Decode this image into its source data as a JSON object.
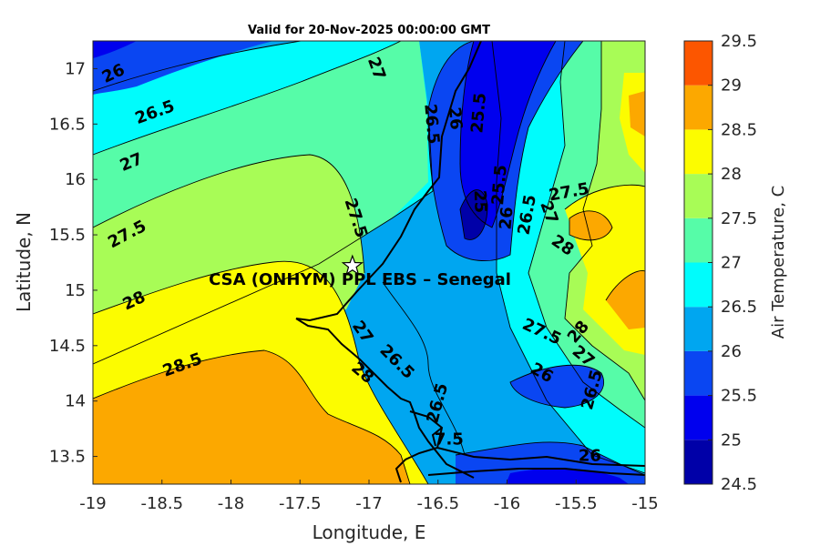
{
  "title": "Valid for 20-Nov-2025 00:00:00 GMT",
  "xlabel": "Longitude, E",
  "ylabel": "Latitude, N",
  "colorbar_label": "Air Temperature, C",
  "site_label": "CSA (ONHYM) PPL EBS  – Senegal",
  "x_ticks": [
    "-19",
    "-18.5",
    "-18",
    "-17.5",
    "-17",
    "-16.5",
    "-16",
    "-15.5",
    "-15"
  ],
  "y_ticks": [
    "13.5",
    "14",
    "14.5",
    "15",
    "15.5",
    "16",
    "16.5",
    "17"
  ],
  "colorbar_ticks": [
    "24.5",
    "25",
    "25.5",
    "26",
    "26.5",
    "27",
    "27.5",
    "28",
    "28.5",
    "29",
    "29.5"
  ],
  "colorbar_colors": [
    "#0000a8",
    "#0000ee",
    "#0a46f2",
    "#00a6f0",
    "#00fcfc",
    "#56fca8",
    "#a8fc56",
    "#fcfc00",
    "#fca800",
    "#fc5600",
    "#fc0000"
  ],
  "contour_labels": [
    {
      "text": "26",
      "lon": -18.85,
      "lat": 16.95,
      "rot": -25
    },
    {
      "text": "26.5",
      "lon": -18.55,
      "lat": 16.6,
      "rot": -20
    },
    {
      "text": "27",
      "lon": -18.72,
      "lat": 16.15,
      "rot": -22
    },
    {
      "text": "27.5",
      "lon": -18.75,
      "lat": 15.5,
      "rot": -28
    },
    {
      "text": "28",
      "lon": -18.7,
      "lat": 14.9,
      "rot": -25
    },
    {
      "text": "28.5",
      "lon": -18.35,
      "lat": 14.32,
      "rot": -20
    },
    {
      "text": "27",
      "lon": -16.95,
      "lat": 17.0,
      "rot": 70
    },
    {
      "text": "27.5",
      "lon": -17.1,
      "lat": 15.65,
      "rot": 72
    },
    {
      "text": "26.5",
      "lon": -16.55,
      "lat": 16.5,
      "rot": 85
    },
    {
      "text": "26",
      "lon": -16.38,
      "lat": 16.55,
      "rot": 85
    },
    {
      "text": "25.5",
      "lon": -16.2,
      "lat": 16.6,
      "rot": -85
    },
    {
      "text": "25.5",
      "lon": -16.05,
      "lat": 15.95,
      "rot": -85
    },
    {
      "text": "25",
      "lon": -16.2,
      "lat": 15.8,
      "rot": 88
    },
    {
      "text": "26",
      "lon": -16.0,
      "lat": 15.65,
      "rot": -85
    },
    {
      "text": "26.5",
      "lon": -15.85,
      "lat": 15.68,
      "rot": -80
    },
    {
      "text": "27",
      "lon": -15.7,
      "lat": 15.7,
      "rot": 70
    },
    {
      "text": "27.5",
      "lon": -15.55,
      "lat": 15.88,
      "rot": -10
    },
    {
      "text": "28",
      "lon": -15.6,
      "lat": 15.4,
      "rot": 35
    },
    {
      "text": "27",
      "lon": -17.05,
      "lat": 14.62,
      "rot": 55
    },
    {
      "text": "26.5",
      "lon": -16.8,
      "lat": 14.35,
      "rot": 45
    },
    {
      "text": "28",
      "lon": -17.05,
      "lat": 14.25,
      "rot": 40
    },
    {
      "text": "26.5",
      "lon": -16.5,
      "lat": 13.98,
      "rot": -75
    },
    {
      "text": "27.5",
      "lon": -15.75,
      "lat": 14.62,
      "rot": 25
    },
    {
      "text": "28",
      "lon": -15.48,
      "lat": 14.62,
      "rot": -50
    },
    {
      "text": "27",
      "lon": -15.45,
      "lat": 14.4,
      "rot": 40
    },
    {
      "text": "26",
      "lon": -15.75,
      "lat": 14.25,
      "rot": 30
    },
    {
      "text": "26.5",
      "lon": -15.38,
      "lat": 14.1,
      "rot": -75
    },
    {
      "text": "26",
      "lon": -15.4,
      "lat": 13.5,
      "rot": 0
    },
    {
      "text": "7.5",
      "lon": -16.42,
      "lat": 13.65,
      "rot": 0
    }
  ],
  "site": {
    "lon": -17.12,
    "lat": 15.22
  }
}
